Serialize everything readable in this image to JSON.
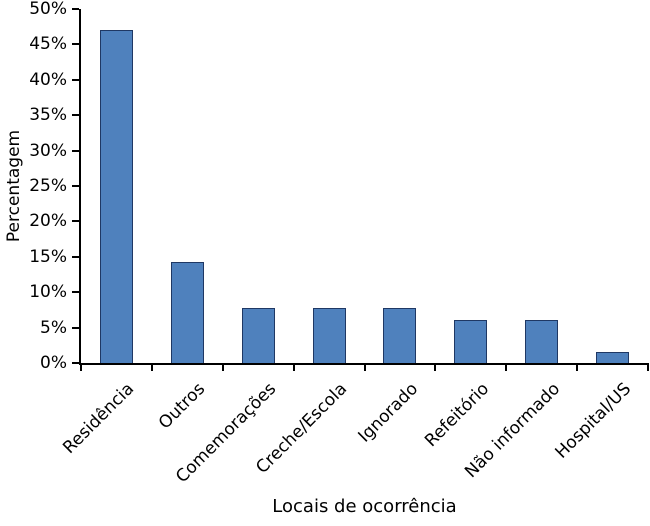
{
  "chart_data": {
    "type": "bar",
    "title": "",
    "xlabel": "Locais de ocorrência",
    "ylabel": "Percentagem",
    "categories": [
      "Residência",
      "Outros",
      "Comemorações",
      "Creche/Escola",
      "Ignorado",
      "Refeitório",
      "Não informado",
      "Hospital/US"
    ],
    "values": [
      47.0,
      14.2,
      7.7,
      7.7,
      7.7,
      6.1,
      6.1,
      1.6
    ],
    "value_unit": "%",
    "ylim": [
      0,
      50
    ],
    "ytick_step": 5,
    "y_tick_labels": [
      "0%",
      "5%",
      "10%",
      "15%",
      "20%",
      "25%",
      "30%",
      "35%",
      "40%",
      "45%",
      "50%"
    ],
    "x_tick_label_rotation_deg": -45,
    "grid": false,
    "legend": "none",
    "bar_fill_color": "#4f81bd",
    "bar_border_color": "#1f3864",
    "axis_color": "#000000",
    "text_color": "#000000",
    "background_color": "#ffffff"
  }
}
